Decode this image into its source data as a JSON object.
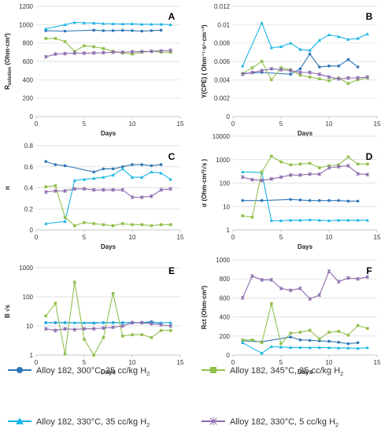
{
  "colors": {
    "blue_dark": "#2E75B6",
    "green": "#92C14E",
    "cyan": "#16B4E6",
    "purple": "#8C6BAE"
  },
  "legend": {
    "items": [
      {
        "key": "s1",
        "label": "Alloy 182, 300°C, 35 cc/kg H",
        "sub": "2",
        "marker": "circle"
      },
      {
        "key": "s2",
        "label": "Alloy 182, 345°C, 35 cc/kg H",
        "sub": "2",
        "marker": "square"
      },
      {
        "key": "s3",
        "label": "Alloy 182, 330°C, 35 cc/kg H",
        "sub": "2",
        "marker": "triangle"
      },
      {
        "key": "s4",
        "label": "Alloy 182, 330°C, 5 cc/kg H",
        "sub": "2",
        "marker": "asterisk"
      }
    ]
  },
  "chart_data": [
    {
      "panel": "A",
      "type": "line",
      "scale": "linear",
      "ylabel": "R",
      "ylabel_sub": "solution",
      "ylabel_rest": " (Ohm·cm²)",
      "xlabel": "Days",
      "xlim": [
        0,
        15
      ],
      "xticks": [
        "0",
        "5",
        "10",
        "15"
      ],
      "ylim": [
        0,
        1200
      ],
      "yticks": [
        "0",
        "200",
        "400",
        "600",
        "800",
        "1000",
        "1200"
      ],
      "series": [
        {
          "key": "s1",
          "x": [
            1,
            3,
            6,
            7,
            8,
            9,
            10,
            11,
            12,
            13
          ],
          "y": [
            935,
            930,
            940,
            935,
            935,
            938,
            935,
            930,
            935,
            940
          ]
        },
        {
          "key": "s3",
          "x": [
            1,
            3,
            4,
            5,
            6,
            7,
            8,
            9,
            10,
            11,
            12,
            13,
            14
          ],
          "y": [
            955,
            1000,
            1025,
            1020,
            1018,
            1012,
            1010,
            1008,
            1010,
            1005,
            1005,
            1005,
            1000
          ]
        },
        {
          "key": "s2",
          "x": [
            1,
            2,
            3,
            4,
            5,
            6,
            7,
            8,
            9,
            10,
            11,
            12,
            13,
            14
          ],
          "y": [
            850,
            850,
            815,
            710,
            770,
            760,
            740,
            710,
            690,
            680,
            700,
            710,
            700,
            700
          ]
        },
        {
          "key": "s4",
          "x": [
            1,
            2,
            3,
            4,
            5,
            6,
            7,
            8,
            9,
            10,
            11,
            12,
            13,
            14
          ],
          "y": [
            650,
            680,
            685,
            690,
            690,
            692,
            695,
            700,
            700,
            705,
            708,
            710,
            715,
            720
          ]
        }
      ]
    },
    {
      "panel": "B",
      "type": "line",
      "scale": "linear",
      "ylabel": "Y(CPE) ( Ohm⁻¹·sⁿ·cm⁻²)",
      "ylabel_sub": "",
      "ylabel_rest": "",
      "xlabel": "Days",
      "xlim": [
        0,
        15
      ],
      "xticks": [
        "0",
        "5",
        "10",
        "15"
      ],
      "ylim": [
        0,
        0.012
      ],
      "yticks": [
        "0",
        "0.002",
        "0.004",
        "0.006",
        "0.008",
        "0.01",
        "0.012"
      ],
      "series": [
        {
          "key": "s1",
          "x": [
            1,
            3,
            6,
            7,
            8,
            9,
            10,
            11,
            12,
            13
          ],
          "y": [
            0.0047,
            0.0048,
            0.0046,
            0.0052,
            0.0068,
            0.0054,
            0.0055,
            0.0055,
            0.0062,
            0.0054
          ]
        },
        {
          "key": "s3",
          "x": [
            1,
            3,
            4,
            5,
            6,
            7,
            8,
            9,
            10,
            11,
            12,
            13,
            14
          ],
          "y": [
            0.0055,
            0.0102,
            0.0075,
            0.0076,
            0.008,
            0.0073,
            0.0072,
            0.0083,
            0.0089,
            0.0087,
            0.0084,
            0.0085,
            0.009
          ]
        },
        {
          "key": "s2",
          "x": [
            1,
            2,
            3,
            4,
            5,
            6,
            7,
            8,
            9,
            10,
            11,
            12,
            13,
            14
          ],
          "y": [
            0.0047,
            0.0053,
            0.006,
            0.004,
            0.0053,
            0.0051,
            0.0045,
            0.0043,
            0.0041,
            0.0039,
            0.0042,
            0.0036,
            0.004,
            0.0042
          ]
        },
        {
          "key": "s4",
          "x": [
            1,
            2,
            3,
            4,
            5,
            6,
            7,
            8,
            9,
            10,
            11,
            12,
            13,
            14
          ],
          "y": [
            0.0046,
            0.0048,
            0.005,
            0.0052,
            0.0051,
            0.005,
            0.0048,
            0.0048,
            0.0046,
            0.0043,
            0.0041,
            0.0042,
            0.0042,
            0.0043
          ]
        }
      ]
    },
    {
      "panel": "C",
      "type": "line",
      "scale": "linear",
      "ylabel": "n",
      "ylabel_sub": "",
      "ylabel_rest": "",
      "xlabel": "Days",
      "xlim": [
        0,
        15
      ],
      "xticks": [
        "0",
        "5",
        "10",
        "15"
      ],
      "ylim": [
        0,
        0.8
      ],
      "yticks": [
        "0",
        "0.2",
        "0.4",
        "0.6",
        "0.8"
      ],
      "series": [
        {
          "key": "s1",
          "x": [
            1,
            2,
            3,
            6,
            7,
            8,
            9,
            10,
            11,
            12,
            13
          ],
          "y": [
            0.65,
            0.62,
            0.61,
            0.55,
            0.58,
            0.58,
            0.6,
            0.62,
            0.62,
            0.61,
            0.62
          ]
        },
        {
          "key": "s3",
          "x": [
            1,
            3,
            4,
            5,
            6,
            7,
            8,
            9,
            10,
            11,
            12,
            13,
            14
          ],
          "y": [
            0.06,
            0.08,
            0.47,
            0.48,
            0.49,
            0.5,
            0.52,
            0.58,
            0.5,
            0.5,
            0.55,
            0.54,
            0.48
          ]
        },
        {
          "key": "s2",
          "x": [
            1,
            2,
            3,
            4,
            5,
            6,
            7,
            8,
            9,
            10,
            11,
            12,
            13,
            14
          ],
          "y": [
            0.41,
            0.42,
            0.12,
            0.04,
            0.07,
            0.06,
            0.05,
            0.04,
            0.06,
            0.05,
            0.05,
            0.04,
            0.05,
            0.05
          ]
        },
        {
          "key": "s4",
          "x": [
            1,
            2,
            3,
            4,
            5,
            6,
            7,
            8,
            9,
            10,
            11,
            12,
            13,
            14
          ],
          "y": [
            0.36,
            0.37,
            0.37,
            0.39,
            0.39,
            0.38,
            0.38,
            0.38,
            0.38,
            0.31,
            0.31,
            0.32,
            0.38,
            0.39
          ]
        }
      ]
    },
    {
      "panel": "D",
      "type": "line",
      "scale": "log",
      "ylabel": "σ (Ohm·cm²/√s )",
      "ylabel_sub": "",
      "ylabel_rest": "",
      "xlabel": "Days",
      "xlim": [
        0,
        15
      ],
      "xticks": [
        "0",
        "5",
        "10",
        "15"
      ],
      "ylim": [
        1,
        10000
      ],
      "yticks": [
        "1",
        "10",
        "100",
        "1000",
        "10000"
      ],
      "series": [
        {
          "key": "s1",
          "x": [
            1,
            3,
            6,
            7,
            8,
            9,
            10,
            11,
            12,
            13
          ],
          "y": [
            18,
            18,
            20,
            19,
            18,
            18,
            18,
            18,
            17,
            17
          ]
        },
        {
          "key": "s3",
          "x": [
            1,
            3,
            4,
            5,
            6,
            7,
            8,
            9,
            10,
            11,
            12,
            13,
            14
          ],
          "y": [
            300,
            280,
            2.5,
            2.5,
            2.6,
            2.6,
            2.7,
            2.6,
            2.5,
            2.6,
            2.6,
            2.6,
            2.6
          ]
        },
        {
          "key": "s2",
          "x": [
            1,
            2,
            3,
            4,
            5,
            6,
            7,
            8,
            9,
            10,
            11,
            12,
            13,
            14
          ],
          "y": [
            4,
            3.5,
            300,
            1400,
            800,
            600,
            650,
            700,
            450,
            550,
            600,
            1300,
            650,
            650
          ]
        },
        {
          "key": "s4",
          "x": [
            1,
            2,
            3,
            4,
            5,
            6,
            7,
            8,
            9,
            10,
            11,
            12,
            13,
            14
          ],
          "y": [
            180,
            140,
            130,
            150,
            180,
            220,
            220,
            240,
            240,
            450,
            500,
            550,
            250,
            230
          ]
        }
      ]
    },
    {
      "panel": "E",
      "type": "line",
      "scale": "log",
      "ylabel": "B √s",
      "ylabel_sub": "",
      "ylabel_rest": "",
      "xlabel": "Days",
      "xlim": [
        0,
        15
      ],
      "xticks": [
        "0",
        "5",
        "10",
        "15"
      ],
      "ylim": [
        1,
        1000
      ],
      "yticks": [
        "1",
        "10",
        "100",
        "1000"
      ],
      "series": [
        {
          "key": "s1",
          "x": [
            1,
            2,
            3,
            6,
            7,
            8,
            9,
            10,
            11,
            12,
            13
          ],
          "y": [
            13,
            13,
            13,
            12.5,
            13,
            13,
            13,
            13,
            13,
            14,
            12
          ]
        },
        {
          "key": "s3",
          "x": [
            1,
            3,
            4,
            5,
            6,
            7,
            8,
            9,
            10,
            11,
            12,
            13,
            14
          ],
          "y": [
            13,
            13,
            13,
            13,
            13,
            13,
            13,
            13,
            13,
            13,
            13,
            13,
            13
          ]
        },
        {
          "key": "s2",
          "x": [
            1,
            2,
            3,
            4,
            5,
            6,
            7,
            8,
            9,
            10,
            11,
            12,
            13,
            14
          ],
          "y": [
            22,
            60,
            1.1,
            320,
            3.5,
            1.0,
            4,
            130,
            4.5,
            5,
            5,
            4,
            7,
            7
          ]
        },
        {
          "key": "s4",
          "x": [
            1,
            2,
            3,
            4,
            5,
            6,
            7,
            8,
            9,
            10,
            11,
            12,
            13,
            14
          ],
          "y": [
            8,
            7,
            8,
            7.5,
            8,
            8,
            8.5,
            9,
            10,
            13,
            13,
            12,
            11,
            10
          ]
        }
      ]
    },
    {
      "panel": "F",
      "type": "line",
      "scale": "linear",
      "ylabel": "Rct (Ohm·cm²)",
      "ylabel_sub": "",
      "ylabel_rest": "",
      "xlabel": "Days",
      "xlim": [
        0,
        15
      ],
      "xticks": [
        "0",
        "5",
        "10",
        "15"
      ],
      "ylim": [
        0,
        1000
      ],
      "yticks": [
        "0",
        "200",
        "400",
        "600",
        "800",
        "1000"
      ],
      "series": [
        {
          "key": "s1",
          "x": [
            1,
            3,
            6,
            7,
            8,
            9,
            10,
            11,
            12,
            13
          ],
          "y": [
            150,
            140,
            190,
            160,
            155,
            150,
            145,
            135,
            120,
            130
          ]
        },
        {
          "key": "s3",
          "x": [
            1,
            3,
            4,
            5,
            6,
            7,
            8,
            9,
            10,
            11,
            12,
            13,
            14
          ],
          "y": [
            130,
            20,
            90,
            85,
            80,
            80,
            78,
            80,
            78,
            75,
            75,
            72,
            78
          ]
        },
        {
          "key": "s2",
          "x": [
            1,
            2,
            3,
            4,
            5,
            6,
            7,
            8,
            9,
            10,
            11,
            12,
            13,
            14
          ],
          "y": [
            160,
            160,
            130,
            540,
            120,
            230,
            240,
            260,
            170,
            240,
            250,
            210,
            310,
            280
          ]
        },
        {
          "key": "s4",
          "x": [
            1,
            2,
            3,
            4,
            5,
            6,
            7,
            8,
            9,
            10,
            11,
            12,
            13,
            14
          ],
          "y": [
            600,
            830,
            790,
            790,
            700,
            680,
            700,
            590,
            630,
            880,
            770,
            810,
            800,
            820
          ]
        }
      ]
    }
  ]
}
